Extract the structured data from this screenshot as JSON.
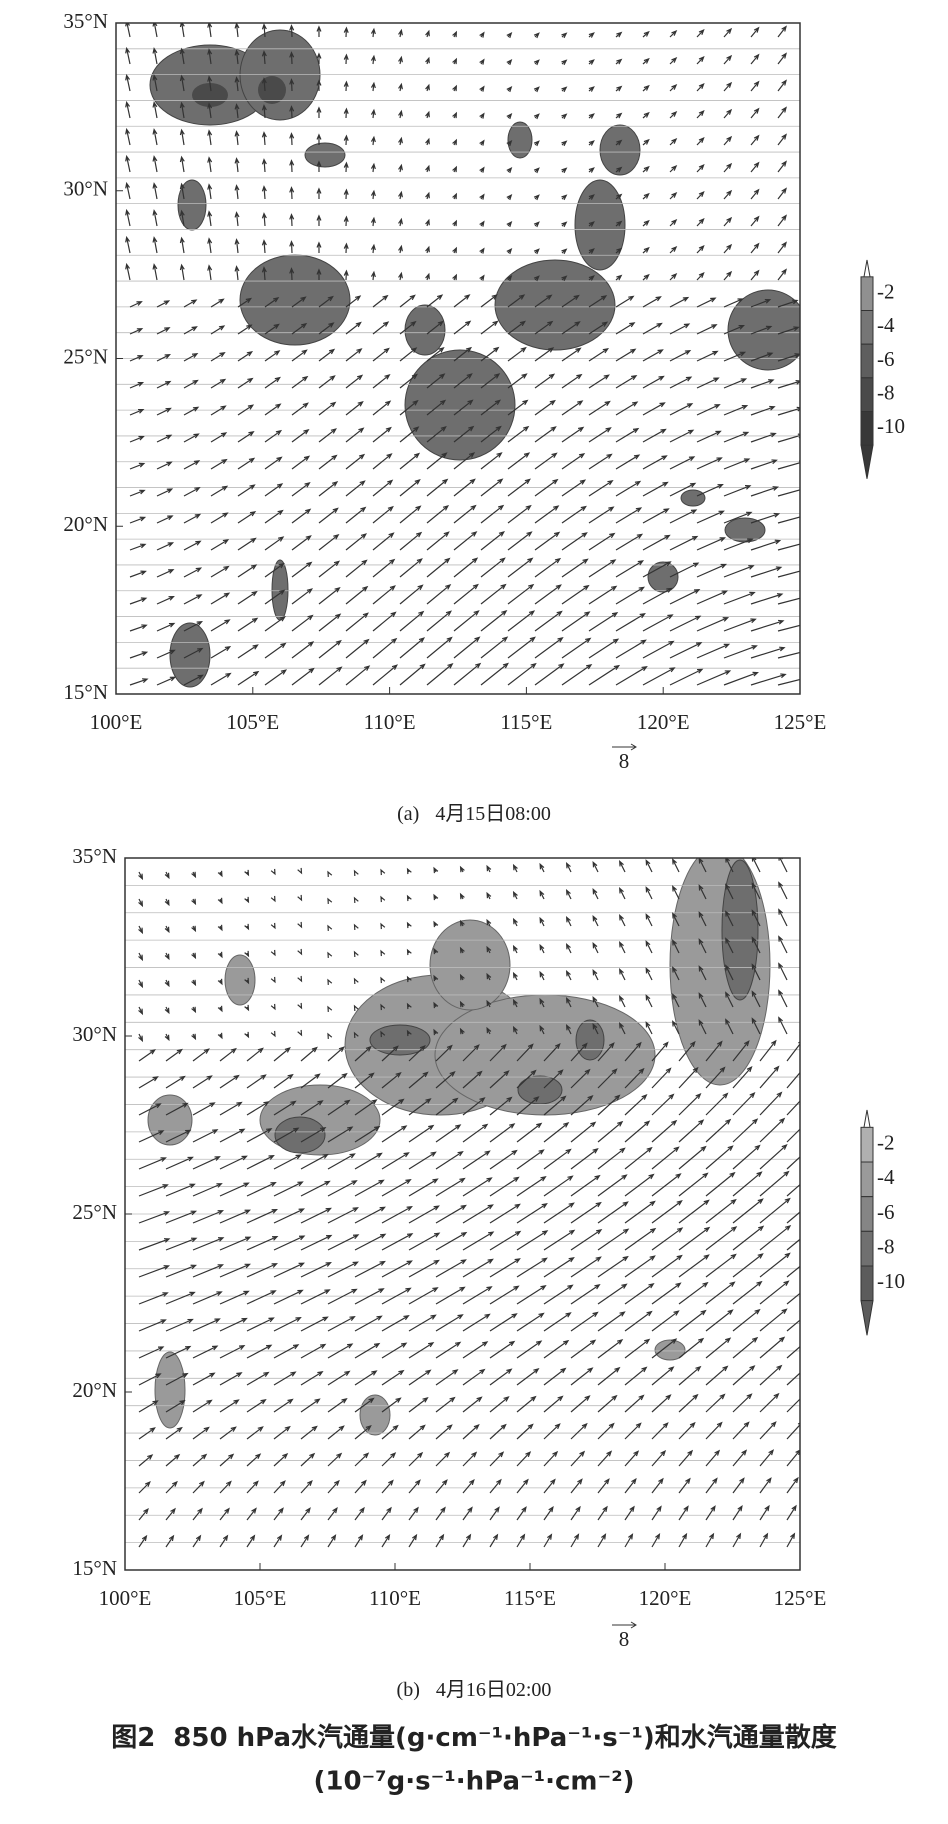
{
  "panels": [
    {
      "label": "(a)",
      "caption": "4月15日08:00",
      "xlim": [
        100,
        125
      ],
      "ylim": [
        15,
        35
      ],
      "xticks": [
        {
          "value": 100,
          "label": "100°E"
        },
        {
          "value": 105,
          "label": "105°E"
        },
        {
          "value": 110,
          "label": "110°E"
        },
        {
          "value": 115,
          "label": "115°E"
        },
        {
          "value": 120,
          "label": "120°E"
        },
        {
          "value": 125,
          "label": "125°E"
        }
      ],
      "yticks": [
        {
          "value": 15,
          "label": "15°N"
        },
        {
          "value": 20,
          "label": "20°N"
        },
        {
          "value": 25,
          "label": "25°N"
        },
        {
          "value": 30,
          "label": "30°N"
        },
        {
          "value": 35,
          "label": "35°N"
        }
      ],
      "colorbar": [
        -2,
        -4,
        -6,
        -8,
        -10
      ],
      "vector_scale": "8"
    },
    {
      "label": "(b)",
      "caption": "4月16日02:00",
      "xlim": [
        100,
        125
      ],
      "ylim": [
        15,
        35
      ],
      "xticks": [
        {
          "value": 100,
          "label": "100°E"
        },
        {
          "value": 105,
          "label": "105°E"
        },
        {
          "value": 110,
          "label": "110°E"
        },
        {
          "value": 115,
          "label": "115°E"
        },
        {
          "value": 120,
          "label": "120°E"
        },
        {
          "value": 125,
          "label": "125°E"
        }
      ],
      "yticks": [
        {
          "value": 15,
          "label": "15°N"
        },
        {
          "value": 20,
          "label": "20°N"
        },
        {
          "value": 25,
          "label": "25°N"
        },
        {
          "value": 30,
          "label": "30°N"
        },
        {
          "value": 35,
          "label": "35°N"
        }
      ],
      "colorbar": [
        -2,
        -4,
        -6,
        -8,
        -10
      ],
      "vector_scale": "8"
    }
  ],
  "figure_caption": {
    "number": "图2",
    "text": "850 hPa水汽通量(g·cm⁻¹·hPa⁻¹·s⁻¹)和水汽通量散度",
    "units": "(10⁻⁷g·s⁻¹·hPa⁻¹·cm⁻²)"
  }
}
